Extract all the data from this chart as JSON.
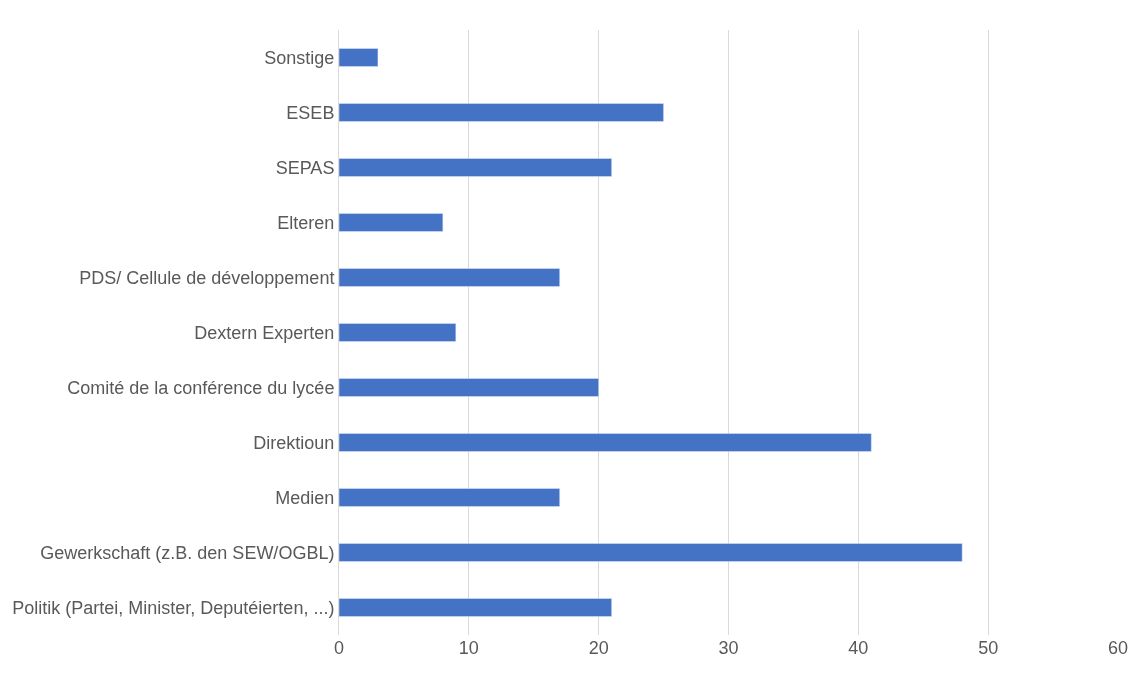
{
  "chart_data": {
    "type": "bar",
    "orientation": "horizontal",
    "categories": [
      "Sonstige",
      "ESEB",
      "SEPAS",
      "Elteren",
      "PDS/ Cellule de développement",
      "Dextern Experten",
      "Comité de la conférence du lycée",
      "Direktioun",
      "Medien",
      "Gewerkschaft (z.B. den SEW/OGBL)",
      "Politik (Partei, Minister, Deputéierten, ...)"
    ],
    "values": [
      3,
      25,
      21,
      8,
      17,
      9,
      20,
      41,
      17,
      48,
      21
    ],
    "color": "#4472c4",
    "xlim": [
      0,
      60
    ],
    "xticks": [
      0,
      10,
      20,
      30,
      40,
      50,
      60
    ],
    "grid": "x",
    "legend": false
  }
}
